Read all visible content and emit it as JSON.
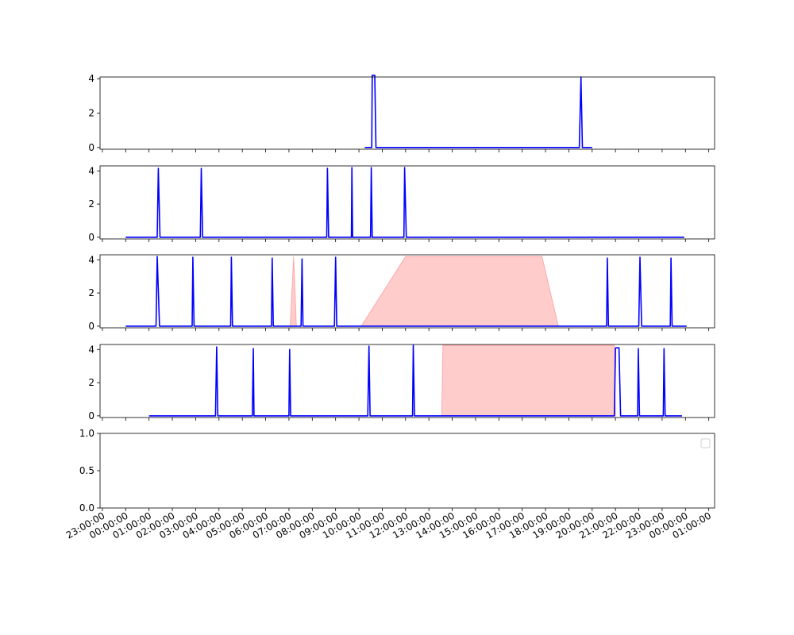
{
  "chart_data": {
    "type": "line",
    "time_unit": "hours",
    "colors": {
      "line": "#0000ff",
      "band": "#ff0000",
      "axes": "#000000"
    },
    "x_range": [
      -1.1,
      25.25
    ],
    "x_ticks": [
      {
        "t": -1,
        "label": "23:00:00"
      },
      {
        "t": 0,
        "label": "00:00:00"
      },
      {
        "t": 1,
        "label": "01:00:00"
      },
      {
        "t": 2,
        "label": "02:00:00"
      },
      {
        "t": 3,
        "label": "03:00:00"
      },
      {
        "t": 4,
        "label": "04:00:00"
      },
      {
        "t": 5,
        "label": "05:00:00"
      },
      {
        "t": 6,
        "label": "06:00:00"
      },
      {
        "t": 7,
        "label": "07:00:00"
      },
      {
        "t": 8,
        "label": "08:00:00"
      },
      {
        "t": 9,
        "label": "09:00:00"
      },
      {
        "t": 10,
        "label": "10:00:00"
      },
      {
        "t": 11,
        "label": "11:00:00"
      },
      {
        "t": 12,
        "label": "12:00:00"
      },
      {
        "t": 13,
        "label": "13:00:00"
      },
      {
        "t": 14,
        "label": "14:00:00"
      },
      {
        "t": 15,
        "label": "15:00:00"
      },
      {
        "t": 16,
        "label": "16:00:00"
      },
      {
        "t": 17,
        "label": "17:00:00"
      },
      {
        "t": 18,
        "label": "18:00:00"
      },
      {
        "t": 19,
        "label": "19:00:00"
      },
      {
        "t": 20,
        "label": "20:00:00"
      },
      {
        "t": 21,
        "label": "21:00:00"
      },
      {
        "t": 22,
        "label": "22:00:00"
      },
      {
        "t": 23,
        "label": "23:00:00"
      },
      {
        "t": 24,
        "label": "00:00:00"
      },
      {
        "t": 25,
        "label": "01:00:00"
      }
    ],
    "panels": [
      {
        "ylim": [
          -0.1,
          4.1
        ],
        "yticks": [
          {
            "v": 0,
            "label": "0"
          },
          {
            "v": 2,
            "label": "2"
          },
          {
            "v": 4,
            "label": "4"
          }
        ],
        "series": [
          [
            [
              10.25,
              0
            ],
            [
              10.55,
              0
            ],
            [
              10.57,
              4.2
            ],
            [
              10.68,
              4.2
            ],
            [
              10.73,
              0
            ],
            [
              19.45,
              0
            ],
            [
              19.52,
              4.1
            ],
            [
              19.58,
              0
            ],
            [
              20.0,
              0
            ]
          ]
        ],
        "bands": []
      },
      {
        "ylim": [
          -0.1,
          4.3
        ],
        "yticks": [
          {
            "v": 0,
            "label": "0"
          },
          {
            "v": 2,
            "label": "2"
          },
          {
            "v": 4,
            "label": "4"
          }
        ],
        "series": [
          [
            [
              0,
              0
            ],
            [
              1.35,
              0
            ],
            [
              1.4,
              4.15
            ],
            [
              1.47,
              0
            ],
            [
              3.2,
              0
            ],
            [
              3.24,
              4.15
            ],
            [
              3.3,
              0
            ],
            [
              8.62,
              0
            ],
            [
              8.65,
              4.15
            ],
            [
              8.7,
              0
            ],
            [
              9.68,
              0
            ],
            [
              9.7,
              4.2
            ],
            [
              9.73,
              0
            ],
            [
              10.5,
              0
            ],
            [
              10.53,
              4.2
            ],
            [
              10.57,
              0
            ],
            [
              11.93,
              0
            ],
            [
              11.96,
              4.2
            ],
            [
              12.03,
              0
            ],
            [
              23.95,
              0
            ]
          ]
        ],
        "bands": []
      },
      {
        "ylim": [
          -0.1,
          4.3
        ],
        "yticks": [
          {
            "v": 0,
            "label": "0"
          },
          {
            "v": 2,
            "label": "2"
          },
          {
            "v": 4,
            "label": "4"
          }
        ],
        "series": [
          [
            [
              0,
              0
            ],
            [
              1.3,
              0
            ],
            [
              1.35,
              4.2
            ],
            [
              1.45,
              0
            ],
            [
              2.85,
              0
            ],
            [
              2.88,
              4.15
            ],
            [
              2.93,
              0
            ],
            [
              4.5,
              0
            ],
            [
              4.53,
              4.15
            ],
            [
              4.58,
              0
            ],
            [
              6.25,
              0
            ],
            [
              6.28,
              4.1
            ],
            [
              6.33,
              0
            ],
            [
              7.52,
              0
            ],
            [
              7.56,
              4.05
            ],
            [
              7.6,
              0
            ],
            [
              8.95,
              0
            ],
            [
              9.0,
              4.15
            ],
            [
              9.05,
              0
            ],
            [
              20.62,
              0
            ],
            [
              20.65,
              4.1
            ],
            [
              20.7,
              0
            ],
            [
              22.0,
              0
            ],
            [
              22.05,
              4.15
            ],
            [
              22.12,
              0
            ],
            [
              23.35,
              0
            ],
            [
              23.38,
              4.1
            ],
            [
              23.43,
              0
            ],
            [
              24.05,
              0
            ]
          ]
        ],
        "bands": [
          [
            [
              7.05,
              0
            ],
            [
              7.2,
              4.2
            ],
            [
              7.32,
              0
            ]
          ],
          [
            [
              10.1,
              0
            ],
            [
              12.0,
              4.2
            ],
            [
              17.85,
              4.2
            ],
            [
              18.55,
              0
            ]
          ]
        ]
      },
      {
        "ylim": [
          -0.1,
          4.3
        ],
        "yticks": [
          {
            "v": 0,
            "label": "0"
          },
          {
            "v": 2,
            "label": "2"
          },
          {
            "v": 4,
            "label": "4"
          }
        ],
        "series": [
          [
            [
              1,
              0
            ],
            [
              3.85,
              0
            ],
            [
              3.9,
              4.15
            ],
            [
              3.95,
              0
            ],
            [
              5.43,
              0
            ],
            [
              5.47,
              4.05
            ],
            [
              5.5,
              0
            ],
            [
              7.0,
              0
            ],
            [
              7.03,
              4.0
            ],
            [
              7.07,
              0
            ],
            [
              10.38,
              0
            ],
            [
              10.43,
              4.2
            ],
            [
              10.48,
              0
            ],
            [
              12.3,
              0
            ],
            [
              12.33,
              4.25
            ],
            [
              12.38,
              0
            ],
            [
              20.95,
              0
            ],
            [
              21.0,
              4.1
            ],
            [
              21.15,
              4.1
            ],
            [
              21.22,
              0
            ],
            [
              21.95,
              0
            ],
            [
              21.98,
              4.05
            ],
            [
              22.03,
              0
            ],
            [
              23.05,
              0
            ],
            [
              23.08,
              4.05
            ],
            [
              23.13,
              0
            ],
            [
              23.85,
              0
            ]
          ]
        ],
        "bands": [
          [
            [
              13.55,
              0
            ],
            [
              13.6,
              4.25
            ],
            [
              20.95,
              4.25
            ],
            [
              21.0,
              0
            ]
          ]
        ]
      },
      {
        "ylim": [
          0,
          1
        ],
        "yticks": [
          {
            "v": 0,
            "label": "0.0"
          },
          {
            "v": 0.5,
            "label": "0.5"
          },
          {
            "v": 1,
            "label": "1.0"
          }
        ],
        "series": [],
        "bands": [],
        "legend": "upper right"
      }
    ]
  }
}
